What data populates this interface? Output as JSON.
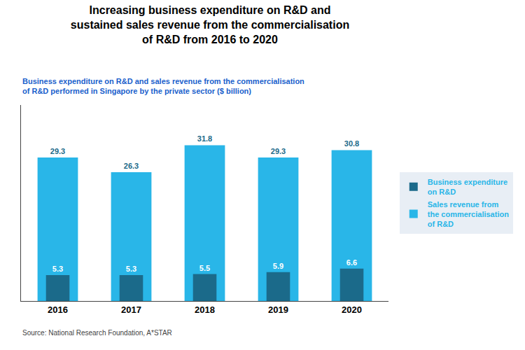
{
  "chart_data": {
    "type": "bar",
    "title": "Increasing business expenditure on R&D and\nsustained sales revenue from the commercialisation\nof R&D from 2016 to 2020",
    "subtitle": "Business expenditure on R&D and sales revenue from the commercialisation\nof R&D performed in Singapore by the private sector ($ billion)",
    "categories": [
      "2016",
      "2017",
      "2018",
      "2019",
      "2020"
    ],
    "series": [
      {
        "name": "Sales revenue from\nthe commercialisation\nof R&D",
        "color": "#29b6e8",
        "values": [
          29.3,
          26.3,
          31.8,
          29.3,
          30.8
        ]
      },
      {
        "name": "Business expenditure\non R&D",
        "color": "#1b6a8a",
        "values": [
          5.3,
          5.3,
          5.5,
          5.9,
          6.6
        ]
      }
    ],
    "ylim": [
      0,
      40
    ],
    "tick_labels": "x",
    "grid": false,
    "legend": "right",
    "data_labels": true,
    "annotations": [
      "Source: National Research Foundation, A*STAR"
    ]
  }
}
